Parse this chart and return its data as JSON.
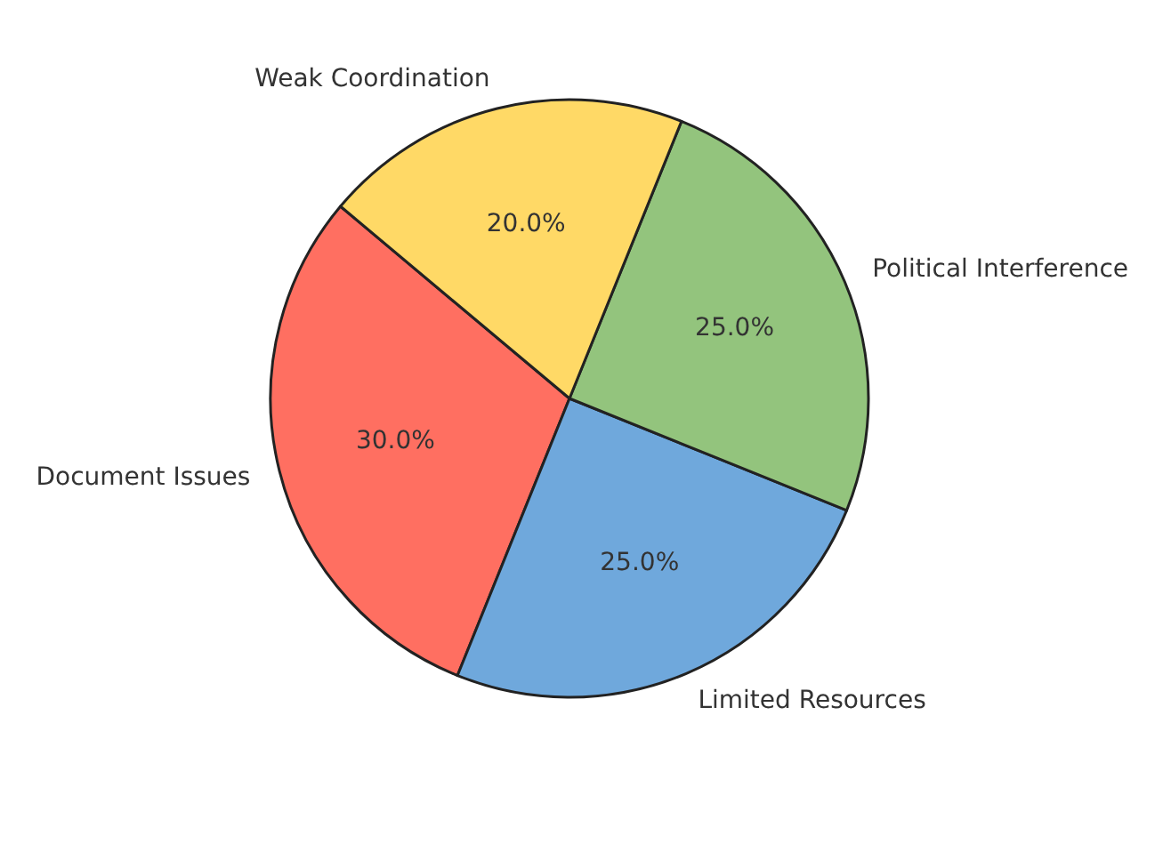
{
  "chart_data": {
    "type": "pie",
    "categories": [
      "Document Issues",
      "Limited Resources",
      "Political Interference",
      "Weak Coordination"
    ],
    "values": [
      30,
      25,
      25,
      20
    ],
    "colors": [
      "#ff6f61",
      "#6fa8dc",
      "#93c47d",
      "#ffd966"
    ],
    "value_labels": [
      "30.0%",
      "25.0%",
      "25.0%",
      "20.0%"
    ]
  }
}
